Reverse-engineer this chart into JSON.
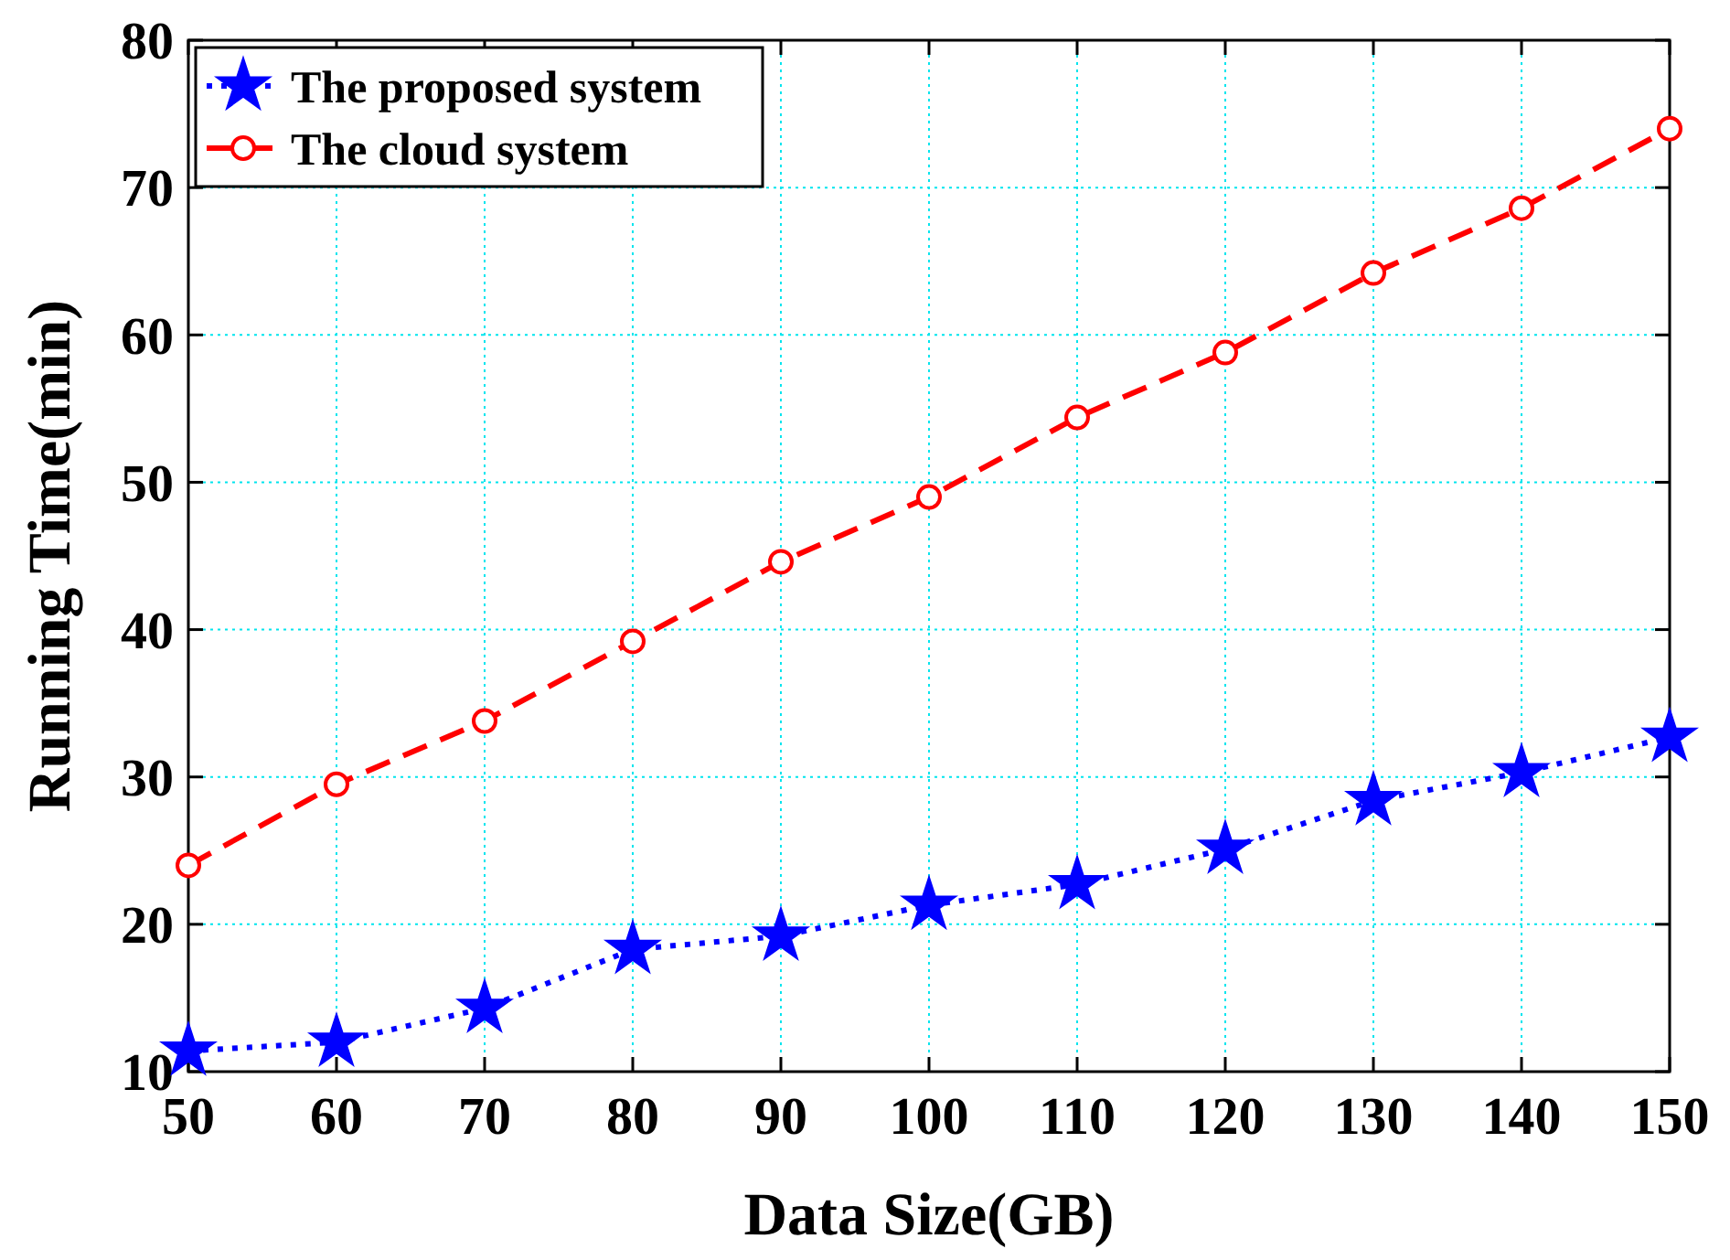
{
  "chart_data": {
    "type": "line",
    "xlabel": "Data Size(GB)",
    "ylabel": "Running Time(min)",
    "x": [
      50,
      60,
      70,
      80,
      90,
      100,
      110,
      120,
      130,
      140,
      150
    ],
    "series": [
      {
        "name": "The proposed system",
        "color": "#0000ff",
        "marker": "star",
        "line_style": "dotted",
        "values": [
          11.4,
          12,
          14.3,
          18.3,
          19.2,
          21.3,
          22.7,
          25.1,
          28.4,
          30.3,
          32.7
        ]
      },
      {
        "name": "The cloud system",
        "color": "#ff0000",
        "marker": "circle",
        "line_style": "dashed",
        "values": [
          24,
          29.5,
          33.8,
          39.2,
          44.6,
          49,
          54.4,
          58.8,
          64.2,
          68.6,
          74
        ]
      }
    ],
    "xlim": [
      50,
      150
    ],
    "xticks": [
      50,
      60,
      70,
      80,
      90,
      100,
      110,
      120,
      130,
      140,
      150
    ],
    "ylim": [
      10,
      80
    ],
    "yticks": [
      10,
      20,
      30,
      40,
      50,
      60,
      70,
      80
    ],
    "grid": true,
    "legend": "top left"
  }
}
